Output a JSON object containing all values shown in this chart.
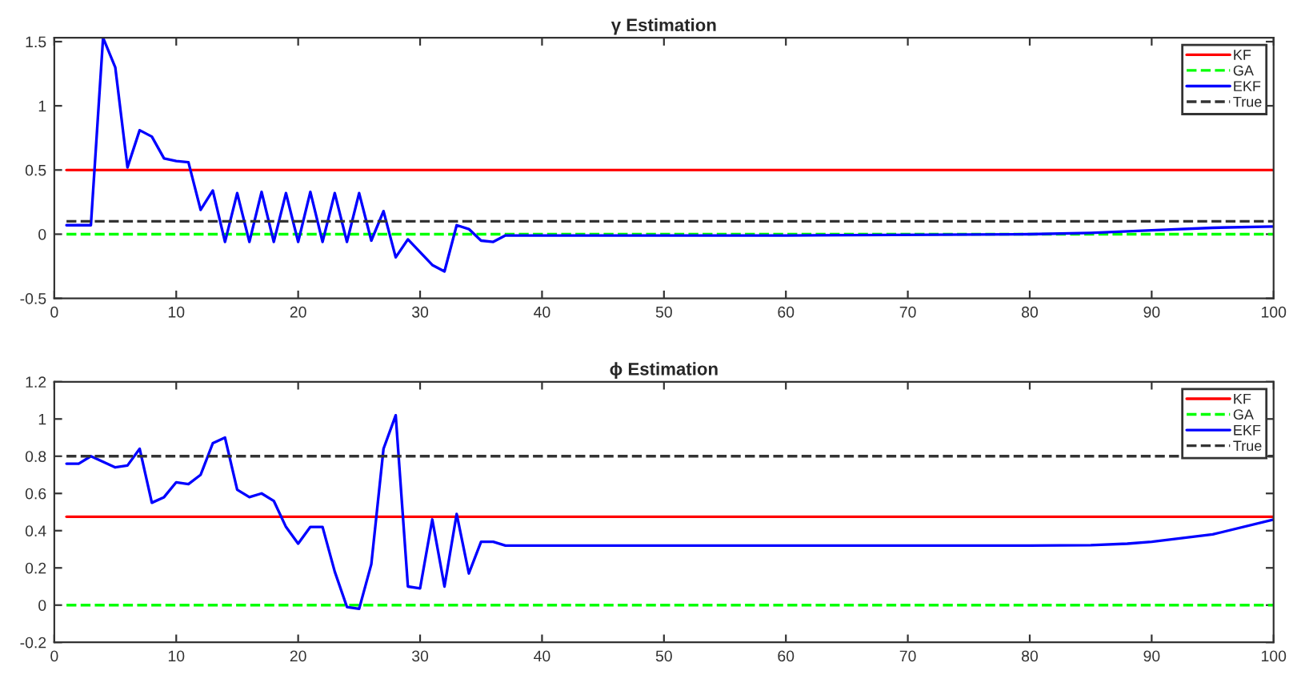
{
  "chart_data": [
    {
      "type": "line",
      "title": "γ Estimation",
      "xlim": [
        0,
        100
      ],
      "xticks": [
        0,
        10,
        20,
        30,
        40,
        50,
        60,
        70,
        80,
        90,
        100
      ],
      "ylim": [
        -0.5,
        1.53
      ],
      "yticks": [
        -0.5,
        0,
        0.5,
        1,
        1.5
      ],
      "grid": false,
      "legend": "top right",
      "marker": "none",
      "series": [
        {
          "name": "KF",
          "color": "#ff0000",
          "line_style": "solid",
          "x": [
            1,
            100
          ],
          "values": [
            0.5,
            0.5
          ]
        },
        {
          "name": "GA",
          "color": "#00ff00",
          "line_style": "dashed",
          "x": [
            1,
            100
          ],
          "values": [
            0,
            0
          ]
        },
        {
          "name": "EKF",
          "color": "#0000ff",
          "line_style": "solid",
          "x": [
            1,
            2,
            3,
            4,
            5,
            6,
            7,
            8,
            9,
            10,
            11,
            12,
            13,
            14,
            15,
            16,
            17,
            18,
            19,
            20,
            21,
            22,
            23,
            24,
            25,
            26,
            27,
            28,
            29,
            30,
            31,
            32,
            33,
            34,
            35,
            36,
            37,
            40,
            60,
            80,
            85,
            90,
            95,
            100
          ],
          "values": [
            0.07,
            0.07,
            0.07,
            1.53,
            1.3,
            0.52,
            0.81,
            0.76,
            0.59,
            0.57,
            0.56,
            0.19,
            0.34,
            -0.06,
            0.32,
            -0.06,
            0.33,
            -0.06,
            0.32,
            -0.06,
            0.33,
            -0.06,
            0.32,
            -0.06,
            0.32,
            -0.05,
            0.18,
            -0.18,
            -0.04,
            -0.14,
            -0.24,
            -0.29,
            0.07,
            0.04,
            -0.05,
            -0.06,
            -0.01,
            -0.01,
            -0.01,
            0.0,
            0.01,
            0.03,
            0.05,
            0.06
          ]
        },
        {
          "name": "True",
          "color": "#333333",
          "line_style": "dashed",
          "x": [
            1,
            100
          ],
          "values": [
            0.1,
            0.1
          ]
        }
      ]
    },
    {
      "type": "line",
      "title": "ϕ Estimation",
      "xlim": [
        0,
        100
      ],
      "xticks": [
        0,
        10,
        20,
        30,
        40,
        50,
        60,
        70,
        80,
        90,
        100
      ],
      "ylim": [
        -0.2,
        1.2
      ],
      "yticks": [
        -0.2,
        0,
        0.2,
        0.4,
        0.6,
        0.8,
        1,
        1.2
      ],
      "grid": false,
      "legend": "top right",
      "marker": "none",
      "series": [
        {
          "name": "KF",
          "color": "#ff0000",
          "line_style": "solid",
          "x": [
            1,
            100
          ],
          "values": [
            0.475,
            0.475
          ]
        },
        {
          "name": "GA",
          "color": "#00ff00",
          "line_style": "dashed",
          "x": [
            1,
            100
          ],
          "values": [
            0,
            0
          ]
        },
        {
          "name": "EKF",
          "color": "#0000ff",
          "line_style": "solid",
          "x": [
            1,
            2,
            3,
            4,
            5,
            6,
            7,
            8,
            9,
            10,
            11,
            12,
            13,
            14,
            15,
            16,
            17,
            18,
            19,
            20,
            21,
            22,
            23,
            24,
            25,
            26,
            27,
            28,
            29,
            30,
            31,
            32,
            33,
            34,
            35,
            36,
            37,
            40,
            60,
            80,
            85,
            88,
            90,
            95,
            100
          ],
          "values": [
            0.76,
            0.76,
            0.8,
            0.77,
            0.74,
            0.75,
            0.84,
            0.55,
            0.58,
            0.66,
            0.65,
            0.7,
            0.87,
            0.9,
            0.62,
            0.58,
            0.6,
            0.56,
            0.42,
            0.33,
            0.42,
            0.42,
            0.18,
            -0.01,
            -0.02,
            0.22,
            0.84,
            1.02,
            0.1,
            0.09,
            0.46,
            0.1,
            0.49,
            0.17,
            0.34,
            0.34,
            0.32,
            0.32,
            0.32,
            0.32,
            0.322,
            0.33,
            0.34,
            0.38,
            0.46
          ]
        },
        {
          "name": "True",
          "color": "#333333",
          "line_style": "dashed",
          "x": [
            1,
            100
          ],
          "values": [
            0.8,
            0.8
          ]
        }
      ]
    }
  ]
}
